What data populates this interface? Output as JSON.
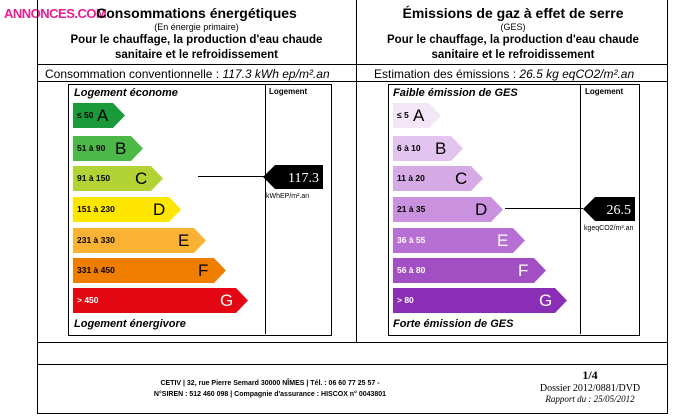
{
  "watermark": "ANNONCES.COM",
  "left": {
    "title": "Consommations énergétiques",
    "subtitle": "(En énergie primaire)",
    "desc1": "Pour le chauffage, la production d'eau chaude",
    "desc2": "sanitaire et le refroidissement",
    "value_label": "Consommation conventionnelle :",
    "value_text": "117.3  kWh ep/m².an",
    "top_label": "Logement économe",
    "bottom_label": "Logement énergivore",
    "col_header": "Logement",
    "marker_value": "117.3",
    "marker_unit": "kWhEP/m².an",
    "classes": [
      {
        "range": "≤ 50",
        "letter": "A",
        "color": "#1a9a3a"
      },
      {
        "range": "51 à 90",
        "letter": "B",
        "color": "#4cb848"
      },
      {
        "range": "91 à 150",
        "letter": "C",
        "color": "#b3d334"
      },
      {
        "range": "151 à 230",
        "letter": "D",
        "color": "#ffe600"
      },
      {
        "range": "231 à 330",
        "letter": "E",
        "color": "#f9b233"
      },
      {
        "range": "331 à 450",
        "letter": "F",
        "color": "#ef7d00"
      },
      {
        "range": "> 450",
        "letter": "G",
        "color": "#e30613"
      }
    ]
  },
  "right": {
    "title": "Émissions de gaz à effet de serre",
    "subtitle": "(GES)",
    "desc1": "Pour le chauffage, la production d'eau chaude",
    "desc2": "sanitaire et le refroidissement",
    "value_label": "Estimation des émissions :",
    "value_text": "26.5  kg eqCO2/m².an",
    "top_label": "Faible émission de GES",
    "bottom_label": "Forte émission de GES",
    "col_header": "Logement",
    "marker_value": "26.5",
    "marker_unit": "kgeqCO2/m².an",
    "classes": [
      {
        "range": "≤ 5",
        "letter": "A",
        "color": "#f3e6f7"
      },
      {
        "range": "6 à 10",
        "letter": "B",
        "color": "#e2c4ee"
      },
      {
        "range": "11 à 20",
        "letter": "C",
        "color": "#d5aae5"
      },
      {
        "range": "21 à 35",
        "letter": "D",
        "color": "#c991de"
      },
      {
        "range": "36 à 55",
        "letter": "E",
        "color": "#b86fd3"
      },
      {
        "range": "56 à 80",
        "letter": "F",
        "color": "#a34fc4"
      },
      {
        "range": "> 80",
        "letter": "G",
        "color": "#8a2fb5"
      }
    ]
  },
  "footer": {
    "line1": "CETIV | 32, rue Pierre Semard 30000 NÎMES | Tél. : 06 60 77 25 57 -",
    "line2": "N°SIREN : 512 460 098  | Compagnie d'assurance : HISCOX n° 0043801",
    "page": "1/4",
    "dossier": "Dossier 2012/0881/DVD",
    "rapport": "Rapport du : 25/05/2012"
  }
}
